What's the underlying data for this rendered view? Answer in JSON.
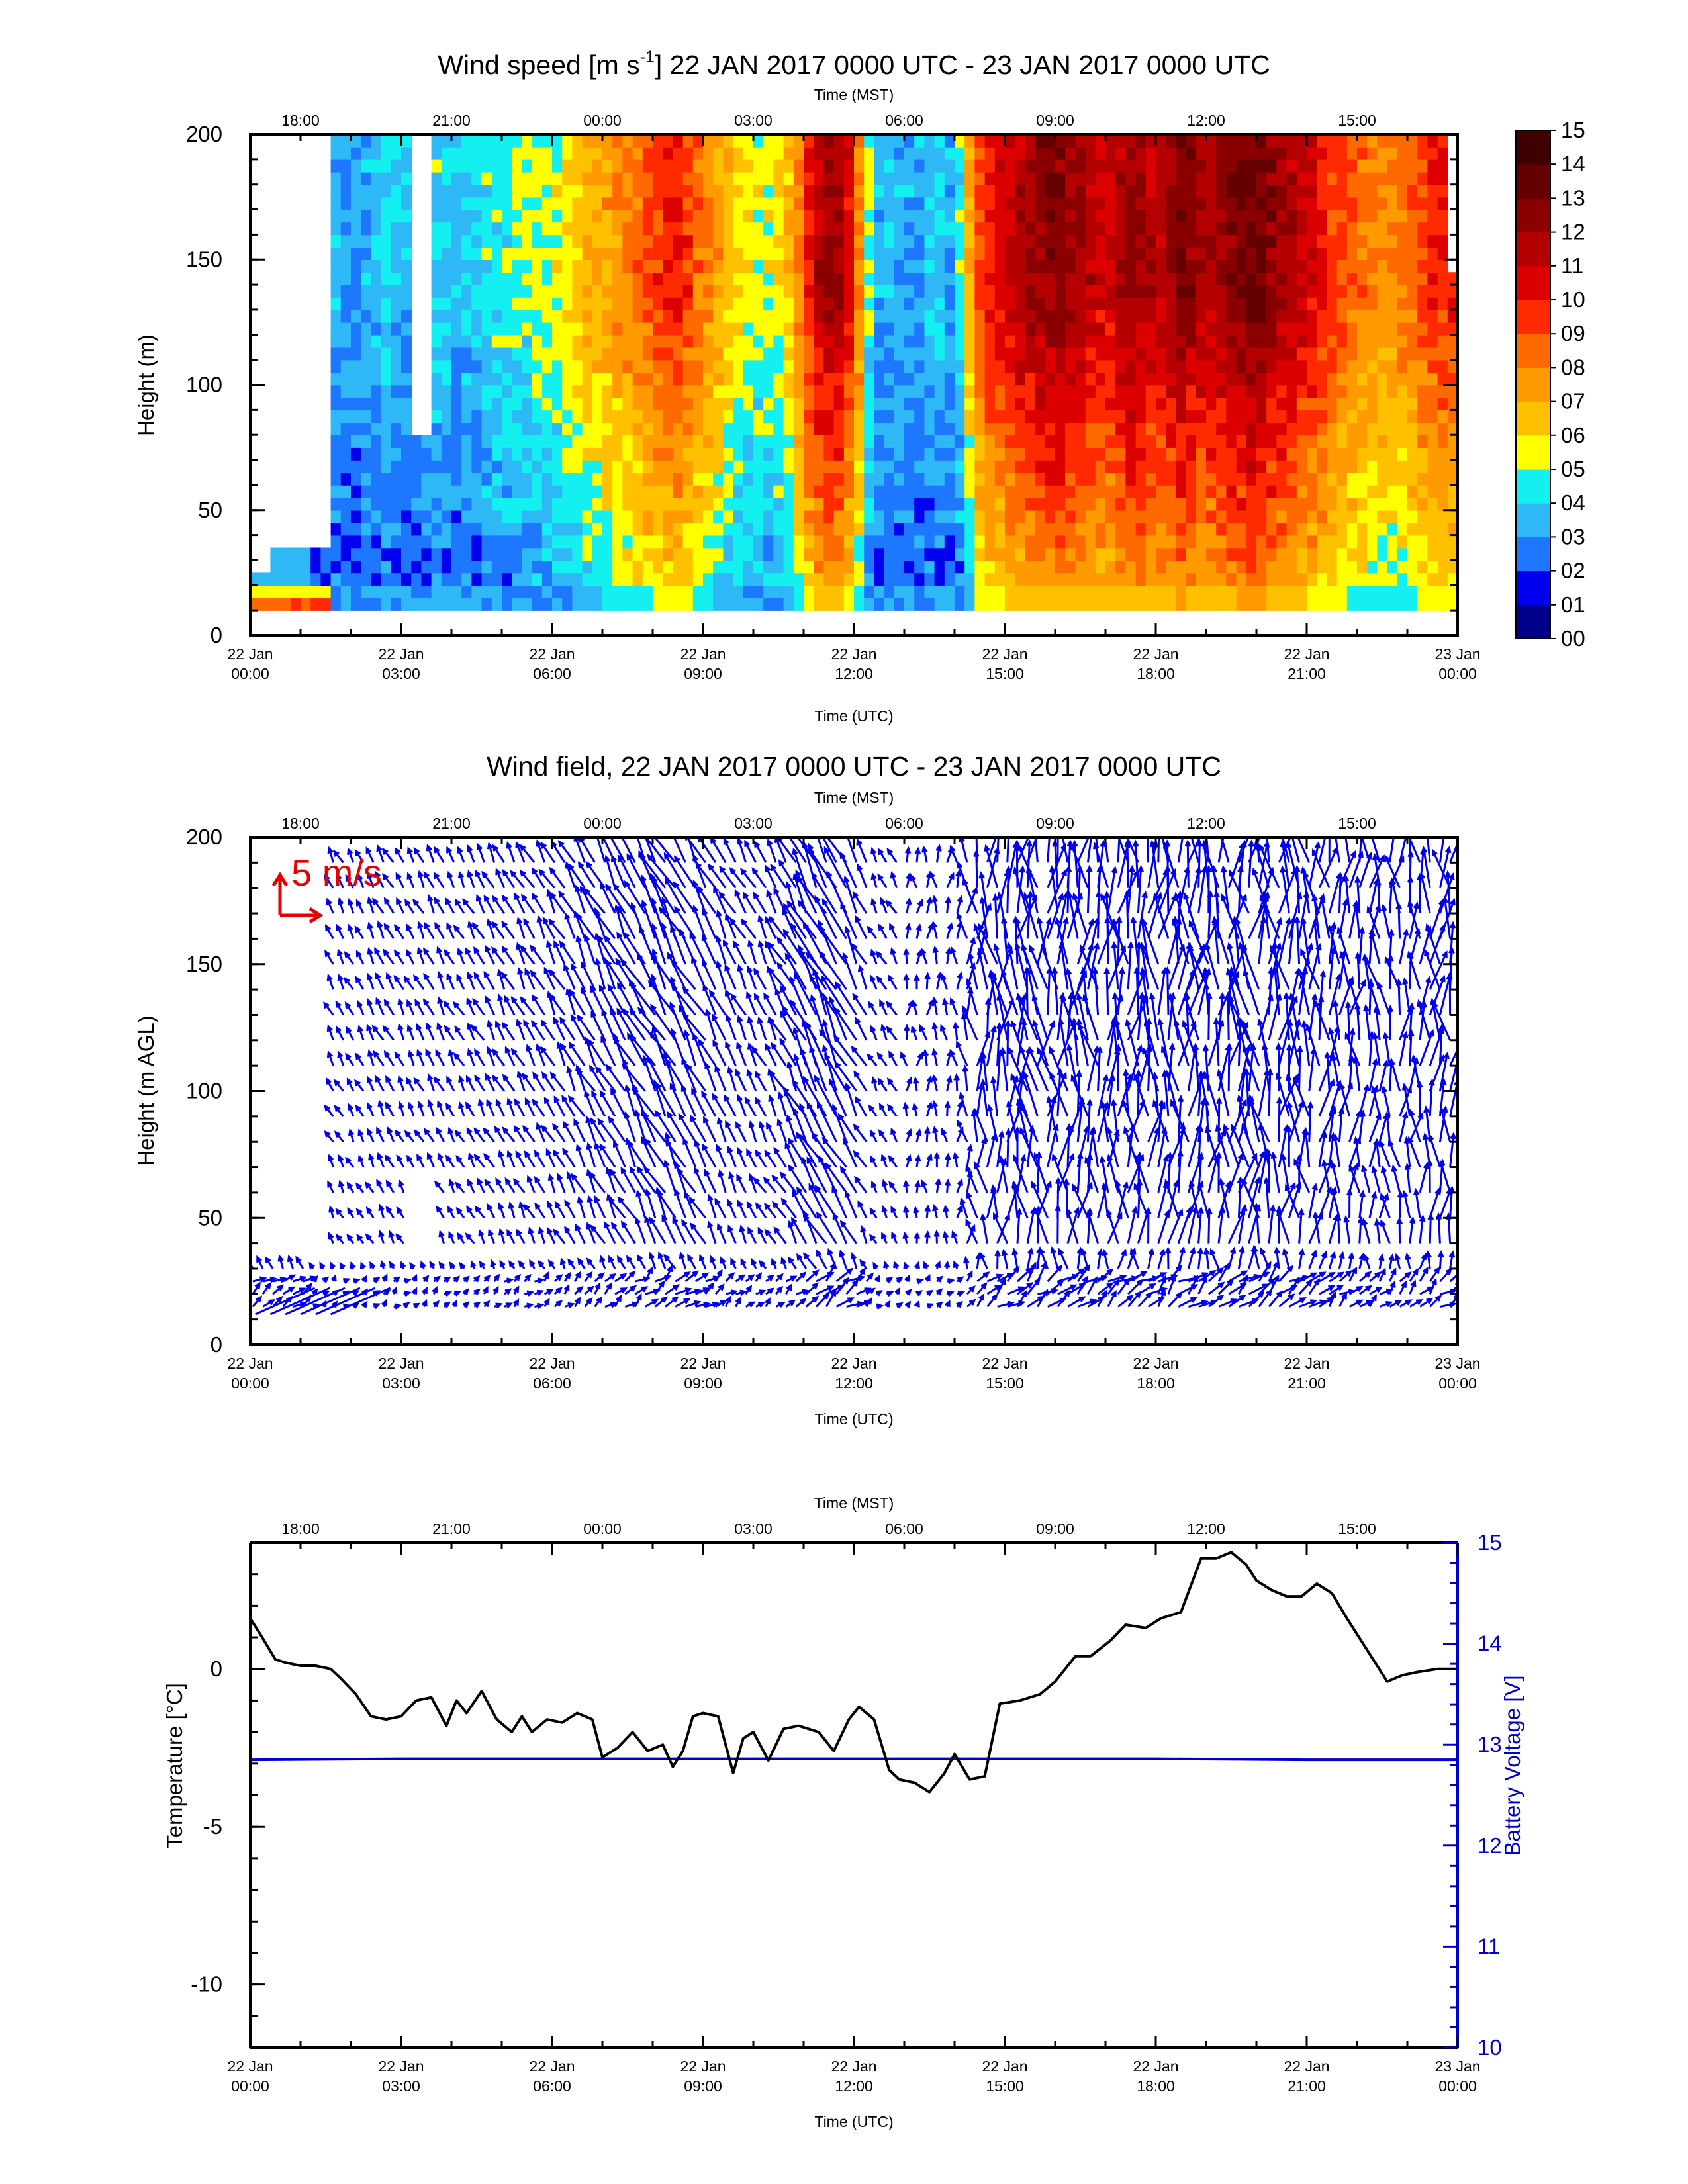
{
  "chart_data": [
    {
      "type": "heatmap",
      "title": "Wind speed [m s-1] 22 JAN 2017 0000 UTC - 23 JAN 2017 0000 UTC",
      "title_main": "Wind speed [m s",
      "title_sup": "-1",
      "title_rest": "] 22 JAN 2017 0000 UTC - 23 JAN 2017 0000 UTC",
      "xlabel": "Time (UTC)",
      "x2label": "Time (MST)",
      "ylabel": "Height (m)",
      "xlim_hours": [
        0,
        24
      ],
      "ylim": [
        0,
        200
      ],
      "yticks": [
        "0",
        "50",
        "100",
        "150",
        "200"
      ],
      "x_ticks": [
        {
          "l1": "22 Jan",
          "l2": "00:00"
        },
        {
          "l1": "22 Jan",
          "l2": "03:00"
        },
        {
          "l1": "22 Jan",
          "l2": "06:00"
        },
        {
          "l1": "22 Jan",
          "l2": "09:00"
        },
        {
          "l1": "22 Jan",
          "l2": "12:00"
        },
        {
          "l1": "22 Jan",
          "l2": "15:00"
        },
        {
          "l1": "22 Jan",
          "l2": "18:00"
        },
        {
          "l1": "22 Jan",
          "l2": "21:00"
        },
        {
          "l1": "23 Jan",
          "l2": "00:00"
        }
      ],
      "top_ticks": [
        "18:00",
        "21:00",
        "00:00",
        "03:00",
        "06:00",
        "09:00",
        "12:00",
        "15:00"
      ],
      "colorbar_labels": [
        "00",
        "01",
        "02",
        "03",
        "04",
        "05",
        "06",
        "07",
        "08",
        "09",
        "10",
        "11",
        "12",
        "13",
        "14",
        "15"
      ],
      "colorbar_colors": [
        "#00008b",
        "#0000ee",
        "#1e78ff",
        "#2eb8f5",
        "#14f0f0",
        "#ffff00",
        "#ffc000",
        "#ff9a00",
        "#ff6a00",
        "#ff2a00",
        "#dc0000",
        "#b40000",
        "#8a0000",
        "#640000",
        "#3e0000"
      ],
      "data_height_range": [
        10,
        200
      ],
      "speed_profile": {
        "hours": [
          0.0,
          0.6,
          1.2,
          1.7,
          2.2,
          2.7,
          3.2,
          3.7,
          4.2,
          4.7,
          5.2,
          5.7,
          6.2,
          6.7,
          7.2,
          7.6,
          8.0,
          8.4,
          8.8,
          9.2,
          9.6,
          10.0,
          10.4,
          10.8,
          11.2,
          11.6,
          12.0,
          12.4,
          12.8,
          13.2,
          13.6,
          14.0,
          14.5,
          15.0,
          15.5,
          16.0,
          16.5,
          17.0,
          17.5,
          18.0,
          18.5,
          19.0,
          19.5,
          20.0,
          20.5,
          21.0,
          21.5,
          22.0,
          22.5,
          23.0,
          23.5,
          24.0
        ],
        "upper_speed": [
          null,
          null,
          null,
          3.5,
          3.2,
          4.2,
          3.5,
          4.3,
          3.6,
          4.5,
          4.8,
          5.2,
          5.6,
          6.8,
          7.6,
          8.3,
          9.2,
          10.2,
          9.0,
          7.6,
          6.2,
          5.6,
          5.4,
          7.0,
          11.2,
          12.4,
          9.8,
          3.3,
          3.8,
          3.1,
          4.0,
          3.4,
          9.2,
          10.8,
          12.0,
          12.7,
          11.9,
          10.8,
          12.4,
          11.3,
          12.8,
          11.5,
          12.6,
          13.4,
          12.0,
          11.0,
          9.6,
          8.6,
          7.8,
          8.4,
          9.8,
          null
        ]
      },
      "missing_regions": "no data below 10 m, 00:00-01:40 UTC above 30 m, and a gap near 03:30 UTC between 75 and 200 m"
    },
    {
      "type": "scatter",
      "title": "Wind field, 22 JAN 2017 0000 UTC - 23 JAN 2017 0000 UTC",
      "xlabel": "Time (UTC)",
      "x2label": "Time (MST)",
      "ylabel": "Height (m AGL)",
      "xlim_hours": [
        0,
        24
      ],
      "ylim": [
        0,
        200
      ],
      "yticks": [
        "0",
        "50",
        "100",
        "150",
        "200"
      ],
      "x_ticks": [
        {
          "l1": "22 Jan",
          "l2": "00:00"
        },
        {
          "l1": "22 Jan",
          "l2": "03:00"
        },
        {
          "l1": "22 Jan",
          "l2": "06:00"
        },
        {
          "l1": "22 Jan",
          "l2": "09:00"
        },
        {
          "l1": "22 Jan",
          "l2": "12:00"
        },
        {
          "l1": "22 Jan",
          "l2": "15:00"
        },
        {
          "l1": "22 Jan",
          "l2": "18:00"
        },
        {
          "l1": "22 Jan",
          "l2": "21:00"
        },
        {
          "l1": "23 Jan",
          "l2": "00:00"
        }
      ],
      "top_ticks": [
        "18:00",
        "21:00",
        "00:00",
        "03:00",
        "06:00",
        "09:00",
        "12:00",
        "15:00"
      ],
      "reference_vector_label": "5 m/s",
      "reference_color": "#e60000",
      "arrow_color": "#0000ee",
      "vector_heights": [
        15,
        20,
        25,
        30,
        40,
        50,
        60,
        70,
        80,
        90,
        100,
        110,
        120,
        130,
        140,
        150,
        160,
        170,
        180,
        190,
        200
      ]
    },
    {
      "type": "line",
      "xlabel": "Time (UTC)",
      "x2label": "Time (MST)",
      "ylabel": "Temperature [°C]",
      "y2label": "Battery Voltage [V]",
      "xlim_hours": [
        0,
        24
      ],
      "ylim": [
        -12,
        4
      ],
      "y2lim": [
        10,
        15
      ],
      "yticks": [
        "0",
        "-5",
        "-10"
      ],
      "y2ticks": [
        "10",
        "11",
        "12",
        "13",
        "14",
        "15"
      ],
      "x_ticks": [
        {
          "l1": "22 Jan",
          "l2": "00:00"
        },
        {
          "l1": "22 Jan",
          "l2": "03:00"
        },
        {
          "l1": "22 Jan",
          "l2": "06:00"
        },
        {
          "l1": "22 Jan",
          "l2": "09:00"
        },
        {
          "l1": "22 Jan",
          "l2": "12:00"
        },
        {
          "l1": "22 Jan",
          "l2": "15:00"
        },
        {
          "l1": "22 Jan",
          "l2": "18:00"
        },
        {
          "l1": "22 Jan",
          "l2": "21:00"
        },
        {
          "l1": "23 Jan",
          "l2": "00:00"
        }
      ],
      "top_ticks": [
        "18:00",
        "21:00",
        "00:00",
        "03:00",
        "06:00",
        "09:00",
        "12:00",
        "15:00"
      ],
      "voltage_color": "#0000cc",
      "series": [
        {
          "name": "Temperature [°C]",
          "color": "#000000",
          "x": [
            0.0,
            0.2,
            0.5,
            0.7,
            1.0,
            1.3,
            1.6,
            1.8,
            2.1,
            2.4,
            2.7,
            3.0,
            3.3,
            3.6,
            3.9,
            4.1,
            4.3,
            4.6,
            4.9,
            5.2,
            5.4,
            5.6,
            5.9,
            6.2,
            6.5,
            6.8,
            7.0,
            7.3,
            7.6,
            7.9,
            8.2,
            8.4,
            8.6,
            8.8,
            9.0,
            9.3,
            9.6,
            9.8,
            10.0,
            10.3,
            10.6,
            10.9,
            11.3,
            11.6,
            11.9,
            12.1,
            12.4,
            12.7,
            12.9,
            13.2,
            13.5,
            13.8,
            14.0,
            14.3,
            14.6,
            14.9,
            15.3,
            15.7,
            16.0,
            16.4,
            16.7,
            17.1,
            17.4,
            17.8,
            18.1,
            18.5,
            18.9,
            19.2,
            19.5,
            19.8,
            20.0,
            20.3,
            20.6,
            20.9,
            21.2,
            21.5,
            21.8,
            22.2,
            22.6,
            22.9,
            23.2,
            23.6,
            24.0
          ],
          "y": [
            1.6,
            1.1,
            0.3,
            0.2,
            0.1,
            0.1,
            0.0,
            -0.3,
            -0.8,
            -1.5,
            -1.6,
            -1.5,
            -1.0,
            -0.9,
            -1.8,
            -1.0,
            -1.4,
            -0.7,
            -1.6,
            -2.0,
            -1.5,
            -2.0,
            -1.6,
            -1.7,
            -1.4,
            -1.6,
            -2.8,
            -2.5,
            -2.0,
            -2.6,
            -2.4,
            -3.1,
            -2.6,
            -1.5,
            -1.4,
            -1.5,
            -3.3,
            -2.2,
            -2.0,
            -2.9,
            -1.9,
            -1.8,
            -2.0,
            -2.6,
            -1.6,
            -1.2,
            -1.6,
            -3.2,
            -3.5,
            -3.6,
            -3.9,
            -3.3,
            -2.7,
            -3.5,
            -3.4,
            -1.1,
            -1.0,
            -0.8,
            -0.4,
            0.4,
            0.4,
            0.9,
            1.4,
            1.3,
            1.6,
            1.8,
            3.5,
            3.5,
            3.7,
            3.3,
            2.8,
            2.5,
            2.3,
            2.3,
            2.7,
            2.4,
            1.6,
            0.6,
            -0.4,
            -0.2,
            -0.1,
            0.0,
            0.0
          ]
        },
        {
          "name": "Battery Voltage [V]",
          "color": "#0000cc",
          "x": [
            0.0,
            3.0,
            6.0,
            9.0,
            12.0,
            15.0,
            18.0,
            21.0,
            24.0
          ],
          "y": [
            12.85,
            12.86,
            12.86,
            12.86,
            12.86,
            12.86,
            12.86,
            12.85,
            12.85
          ]
        }
      ]
    }
  ]
}
